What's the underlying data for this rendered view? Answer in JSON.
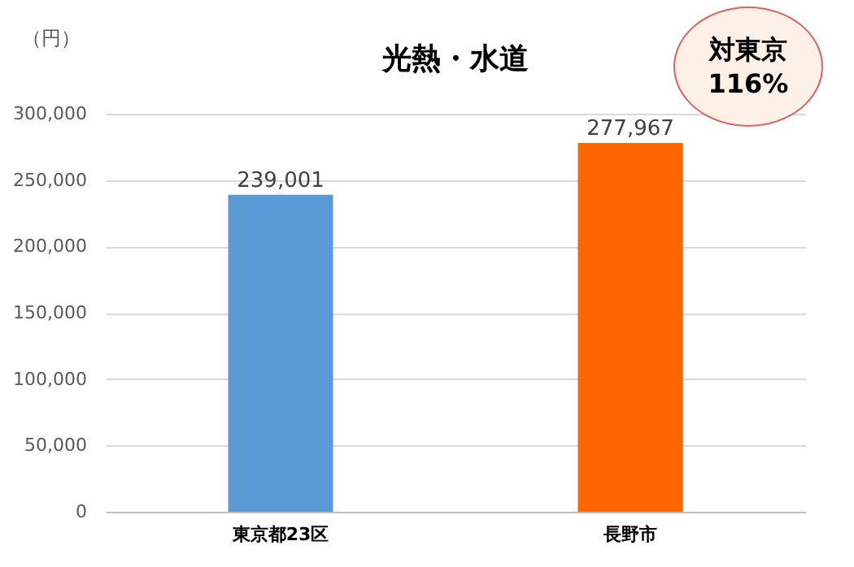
{
  "chart_data": {
    "type": "bar",
    "title": "光熱・水道",
    "ylabel": "（円）",
    "categories": [
      "東京都23区",
      "長野市"
    ],
    "values": [
      239001,
      277967
    ],
    "value_labels": [
      "239,001",
      "277,967"
    ],
    "colors": [
      "#5b9bd5",
      "#ff6600"
    ],
    "ylim": [
      0,
      300000
    ],
    "yticks": [
      0,
      {
        "value": 50000,
        "label": "50,000"
      },
      {
        "value": 100000,
        "label": "100,000"
      },
      {
        "value": 150000,
        "label": "150,000"
      },
      {
        "value": 200000,
        "label": "200,000"
      },
      {
        "value": 250000,
        "label": "250,000"
      },
      {
        "value": 300000,
        "label": "300,000"
      }
    ],
    "grid": "y",
    "annotations": [
      "対東京\n116%"
    ]
  }
}
